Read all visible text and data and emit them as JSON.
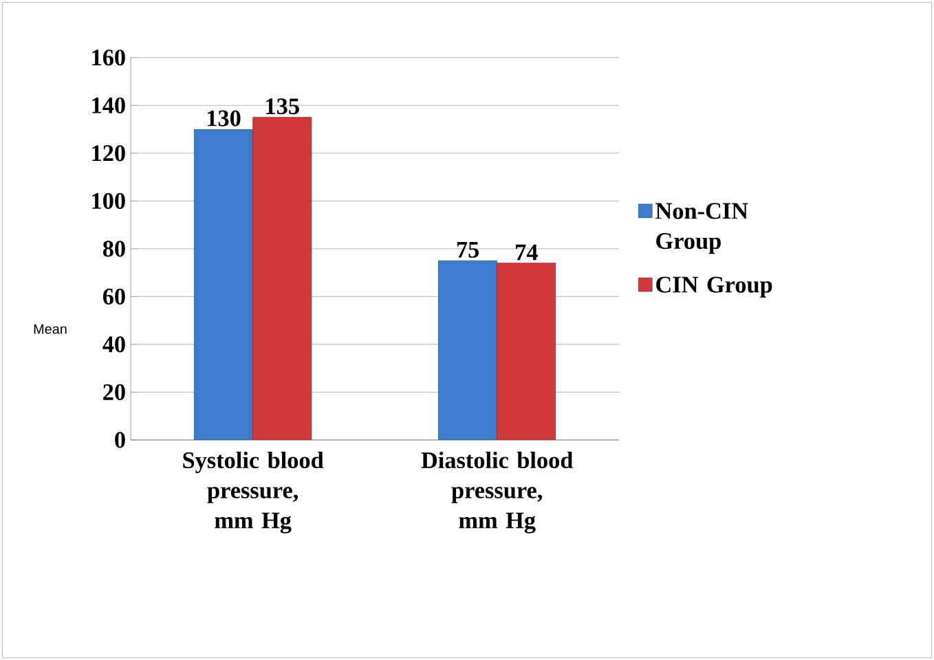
{
  "chart_data": {
    "type": "bar",
    "ylabel": "Mean",
    "categories": [
      "Systolic blood pressure, mm Hg",
      "Diastolic blood pressure, mm Hg"
    ],
    "series": [
      {
        "name": "Non-CIN Group",
        "color": "#3d7ccc",
        "values": [
          130,
          75
        ]
      },
      {
        "name": "CIN Group",
        "color": "#d0393a",
        "values": [
          135,
          74
        ]
      }
    ],
    "ylim": [
      0,
      160
    ],
    "yticks": [
      0,
      20,
      40,
      60,
      80,
      100,
      120,
      140,
      160
    ],
    "grid": "y",
    "legend": "right",
    "data_labels": true
  }
}
